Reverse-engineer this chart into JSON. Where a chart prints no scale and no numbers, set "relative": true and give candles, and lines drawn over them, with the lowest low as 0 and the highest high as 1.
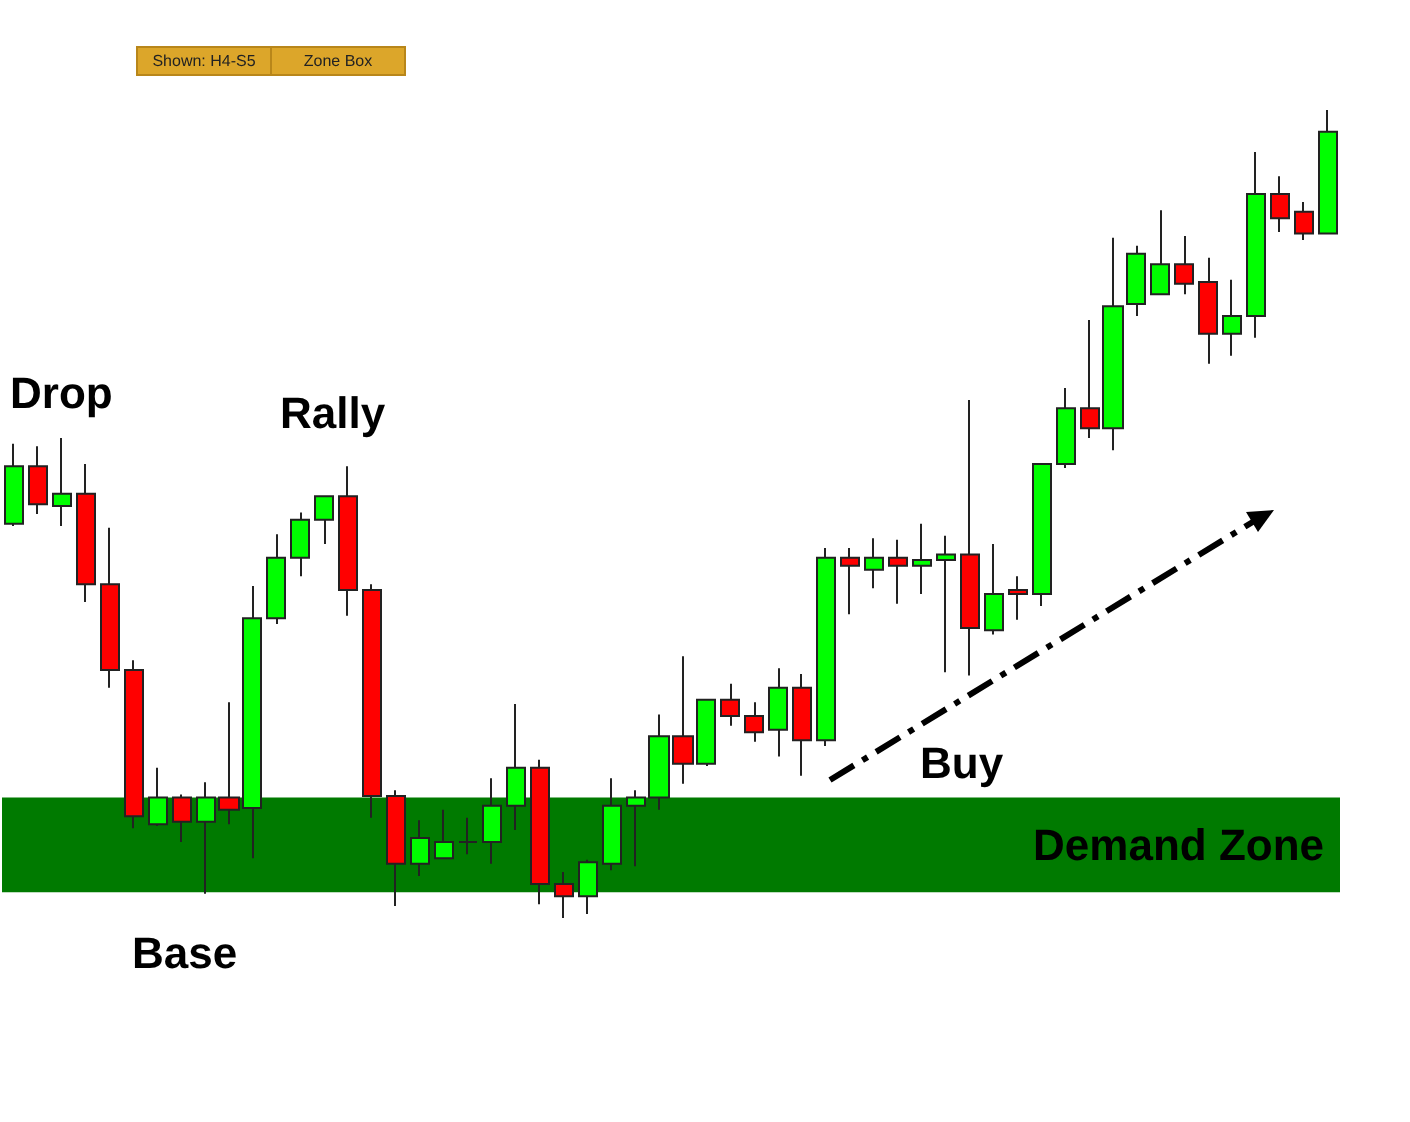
{
  "chart_data": {
    "type": "candlestick",
    "relative": true,
    "categories": [
      null,
      null,
      null,
      null,
      null,
      null,
      null,
      null,
      null,
      null,
      null,
      null,
      null,
      null,
      null,
      null,
      null,
      null,
      null,
      null,
      null,
      null,
      null,
      null,
      null,
      null,
      null,
      null,
      null,
      null,
      null,
      null,
      null,
      null,
      null,
      null,
      null,
      null,
      null,
      null,
      null,
      null,
      null,
      null,
      null,
      null,
      null,
      null,
      null,
      null,
      null,
      null,
      null,
      null,
      null,
      null
    ],
    "ohlc": [
      [
        0.488,
        0.587,
        0.485,
        0.559
      ],
      [
        0.559,
        0.584,
        0.5,
        0.512
      ],
      [
        0.51,
        0.594,
        0.485,
        0.525
      ],
      [
        0.525,
        0.562,
        0.391,
        0.413
      ],
      [
        0.413,
        0.483,
        0.285,
        0.307
      ],
      [
        0.307,
        0.319,
        0.111,
        0.126
      ],
      [
        0.116,
        0.186,
        0.114,
        0.149
      ],
      [
        0.149,
        0.153,
        0.094,
        0.119
      ],
      [
        0.119,
        0.168,
        0.03,
        0.149
      ],
      [
        0.149,
        0.267,
        0.116,
        0.134
      ],
      [
        0.136,
        0.411,
        0.074,
        0.371
      ],
      [
        0.371,
        0.475,
        0.364,
        0.446
      ],
      [
        0.446,
        0.502,
        0.423,
        0.493
      ],
      [
        0.493,
        0.522,
        0.463,
        0.522
      ],
      [
        0.522,
        0.559,
        0.374,
        0.406
      ],
      [
        0.406,
        0.413,
        0.124,
        0.151
      ],
      [
        0.151,
        0.158,
        0.015,
        0.067
      ],
      [
        0.067,
        0.121,
        0.052,
        0.099
      ],
      [
        0.074,
        0.134,
        0.074,
        0.094
      ],
      [
        0.094,
        0.124,
        0.079,
        0.094
      ],
      [
        0.094,
        0.173,
        0.067,
        0.139
      ],
      [
        0.139,
        0.265,
        0.109,
        0.186
      ],
      [
        0.186,
        0.196,
        0.017,
        0.042
      ],
      [
        0.042,
        0.057,
        0,
        0.027
      ],
      [
        0.027,
        0.072,
        0.005,
        0.069
      ],
      [
        0.067,
        0.173,
        0.059,
        0.139
      ],
      [
        0.139,
        0.158,
        0.064,
        0.149
      ],
      [
        0.149,
        0.252,
        0.134,
        0.225
      ],
      [
        0.225,
        0.324,
        0.166,
        0.191
      ],
      [
        0.191,
        0.27,
        0.188,
        0.27
      ],
      [
        0.27,
        0.29,
        0.238,
        0.25
      ],
      [
        0.25,
        0.267,
        0.218,
        0.23
      ],
      [
        0.233,
        0.309,
        0.2,
        0.285
      ],
      [
        0.285,
        0.302,
        0.176,
        0.22
      ],
      [
        0.22,
        0.458,
        0.213,
        0.446
      ],
      [
        0.446,
        0.458,
        0.376,
        0.436
      ],
      [
        0.431,
        0.47,
        0.408,
        0.446
      ],
      [
        0.446,
        0.468,
        0.389,
        0.436
      ],
      [
        0.436,
        0.488,
        0.401,
        0.443
      ],
      [
        0.443,
        0.473,
        0.304,
        0.45
      ],
      [
        0.45,
        0.641,
        0.3,
        0.359
      ],
      [
        0.356,
        0.463,
        0.351,
        0.401
      ],
      [
        0.406,
        0.423,
        0.369,
        0.401
      ],
      [
        0.401,
        0.562,
        0.386,
        0.562
      ],
      [
        0.562,
        0.656,
        0.557,
        0.631
      ],
      [
        0.631,
        0.74,
        0.594,
        0.606
      ],
      [
        0.606,
        0.842,
        0.579,
        0.757
      ],
      [
        0.76,
        0.832,
        0.745,
        0.822
      ],
      [
        0.772,
        0.876,
        0.772,
        0.809
      ],
      [
        0.809,
        0.844,
        0.772,
        0.785
      ],
      [
        0.787,
        0.817,
        0.686,
        0.723
      ],
      [
        0.723,
        0.79,
        0.696,
        0.745
      ],
      [
        0.745,
        0.948,
        0.718,
        0.896
      ],
      [
        0.896,
        0.918,
        0.849,
        0.866
      ],
      [
        0.874,
        0.886,
        0.839,
        0.847
      ],
      [
        0.847,
        1,
        0.847,
        0.973
      ]
    ],
    "colors": [
      "#00ff00",
      "#ff0000",
      "#00ff00",
      "#ff0000",
      "#ff0000",
      "#ff0000",
      "#00ff00",
      "#ff0000",
      "#00ff00",
      "#ff0000",
      "#00ff00",
      "#00ff00",
      "#00ff00",
      "#00ff00",
      "#ff0000",
      "#ff0000",
      "#ff0000",
      "#00ff00",
      "#00ff00",
      "#222222",
      "#00ff00",
      "#00ff00",
      "#ff0000",
      "#ff0000",
      "#00ff00",
      "#00ff00",
      "#00ff00",
      "#00ff00",
      "#ff0000",
      "#00ff00",
      "#ff0000",
      "#ff0000",
      "#00ff00",
      "#ff0000",
      "#00ff00",
      "#ff0000",
      "#00ff00",
      "#ff0000",
      "#00ff00",
      "#00ff00",
      "#ff0000",
      "#00ff00",
      "#ff0000",
      "#00ff00",
      "#00ff00",
      "#ff0000",
      "#00ff00",
      "#00ff00",
      "#00ff00",
      "#ff0000",
      "#ff0000",
      "#00ff00",
      "#00ff00",
      "#ff0000",
      "#ff0000",
      "#00ff00"
    ],
    "bands": [
      {
        "axis": "y",
        "from": 0.032,
        "to": 0.149,
        "label": "Demand Zone",
        "color": "#007a00"
      }
    ],
    "annotations": [
      "Shown: H4-S5",
      "Zone Box",
      "Drop",
      "Rally",
      "Base",
      "Buy"
    ]
  }
}
